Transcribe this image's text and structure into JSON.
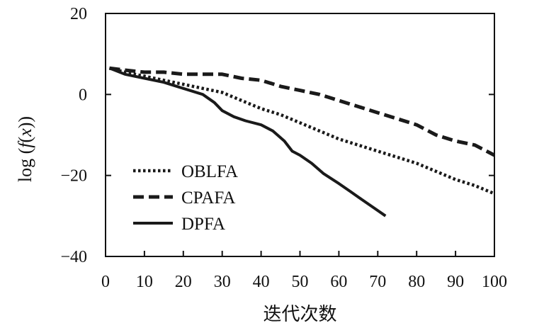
{
  "chart_data": {
    "type": "line",
    "xlabel": "迭代次数",
    "ylabel_parts": {
      "prefix": "log (",
      "func": "f",
      "open": "(",
      "var": "x",
      "close": "))"
    },
    "xlim": [
      0,
      100
    ],
    "ylim": [
      -40,
      20
    ],
    "x_ticks": [
      0,
      10,
      20,
      30,
      40,
      50,
      60,
      70,
      80,
      90,
      100
    ],
    "y_ticks": [
      20,
      0,
      -20,
      -40
    ],
    "y_tick_labels": [
      "20",
      "0",
      "−20",
      "−40"
    ],
    "grid": false,
    "legend_position": "lower-left",
    "series": [
      {
        "name": "OBLFA",
        "style": "dotted",
        "color": "#1a1a1a",
        "x": [
          1,
          5,
          10,
          15,
          20,
          25,
          30,
          35,
          40,
          45,
          50,
          55,
          60,
          65,
          70,
          75,
          80,
          85,
          90,
          95,
          100
        ],
        "y": [
          6.5,
          5.5,
          4.5,
          3.5,
          2.5,
          1.5,
          0.5,
          -1.5,
          -3.5,
          -5,
          -7,
          -9,
          -11,
          -12.5,
          -14,
          -15.5,
          -17,
          -19,
          -21,
          -22.5,
          -24.5
        ]
      },
      {
        "name": "CPAFA",
        "style": "dashed",
        "color": "#1a1a1a",
        "x": [
          1,
          5,
          10,
          15,
          20,
          25,
          30,
          35,
          40,
          45,
          50,
          55,
          60,
          65,
          70,
          75,
          80,
          85,
          90,
          95,
          100
        ],
        "y": [
          6.5,
          6,
          5.5,
          5.5,
          5,
          5,
          5,
          4,
          3.5,
          2,
          1,
          0,
          -1.5,
          -3,
          -4.5,
          -6,
          -7.5,
          -10,
          -11.5,
          -12.5,
          -15
        ]
      },
      {
        "name": "DPFA",
        "style": "solid",
        "color": "#1a1a1a",
        "x": [
          1,
          5,
          10,
          15,
          20,
          25,
          28,
          30,
          33,
          36,
          40,
          43,
          46,
          48,
          50,
          53,
          56,
          60,
          63,
          66,
          69,
          72
        ],
        "y": [
          6.5,
          5,
          4,
          3,
          1.5,
          0,
          -2,
          -4,
          -5.5,
          -6.5,
          -7.5,
          -9,
          -11.5,
          -14,
          -15,
          -17,
          -19.5,
          -22,
          -24,
          -26,
          -28,
          -30
        ]
      }
    ]
  }
}
